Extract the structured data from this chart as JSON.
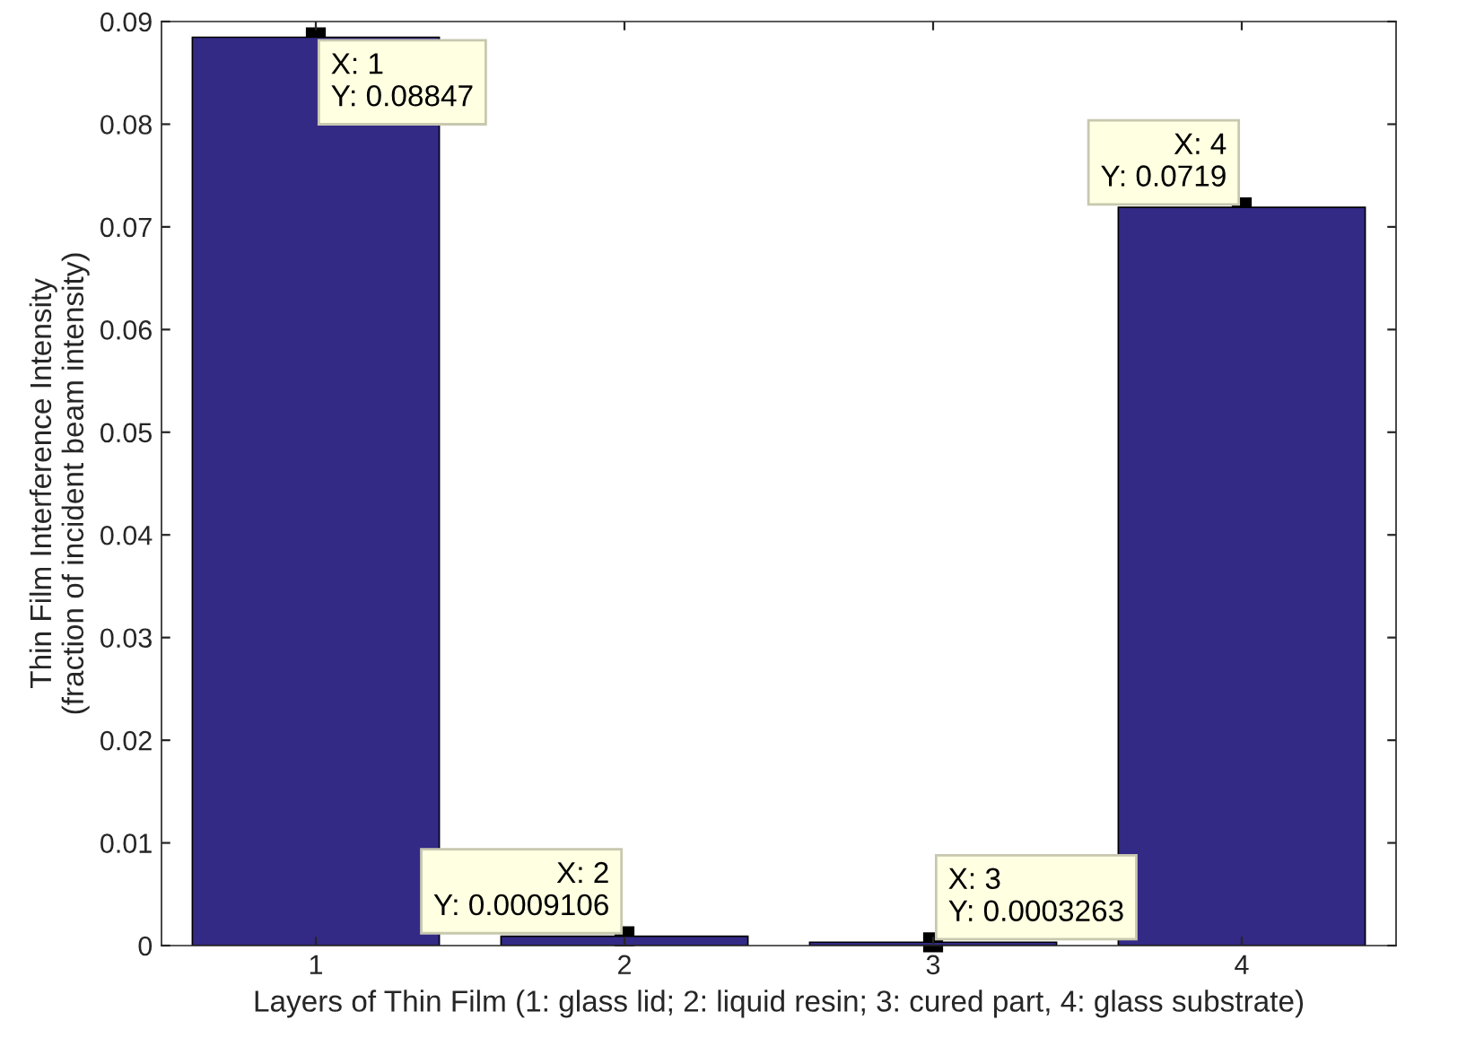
{
  "chart_data": {
    "type": "bar",
    "xlabel": "Layers of Thin Film (1: glass lid; 2: liquid resin; 3: cured part, 4: glass substrate)",
    "ylabel": "Thin Film Interference Intensity\n(fraction of incident beam intensity)",
    "categories": [
      "1",
      "2",
      "3",
      "4"
    ],
    "values": [
      0.08847,
      0.0009106,
      0.0003263,
      0.0719
    ],
    "color": "#332a86",
    "ylim": [
      0,
      0.09
    ],
    "yticks": [
      0,
      0.01,
      0.02,
      0.03,
      0.04,
      0.05,
      0.06,
      0.07,
      0.08,
      0.09
    ],
    "grid": false,
    "legend": false,
    "annotations": [
      {
        "text": "X: 1\nY: 0.08847",
        "x": "1",
        "y": 0.08847
      },
      {
        "text": "X: 2\nY: 0.0009106",
        "x": "2",
        "y": 0.0009106
      },
      {
        "text": "X: 3\nY: 0.0003263",
        "x": "3",
        "y": 0.0003263
      },
      {
        "text": "X: 4\nY: 0.0719",
        "x": "4",
        "y": 0.0719
      }
    ]
  }
}
